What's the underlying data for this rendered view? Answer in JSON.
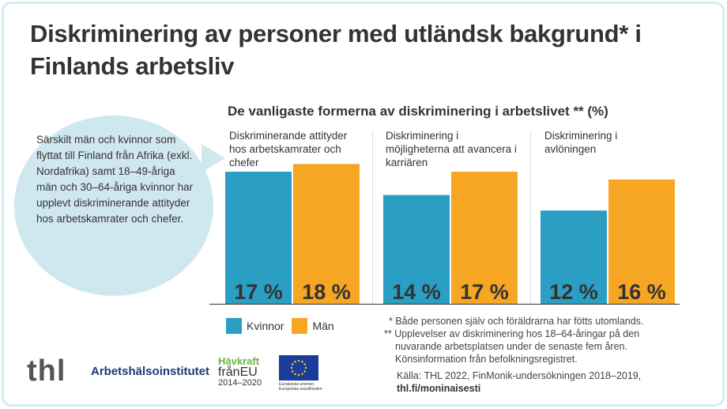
{
  "title": "Diskriminering av personer med utländsk bakgrund* i Finlands arbetsliv",
  "callout": "Särskilt män och kvinnor som flyttat till Finland från Afrika (exkl. Nordafrika) samt 18–49-åriga män och 30–64-åriga kvinnor har upplevt diskriminerande attityder hos arbetskamrater och chefer.",
  "chart_data": {
    "type": "bar",
    "title": "De vanligaste formerna av diskriminering i arbetslivet ** (%)",
    "categories": [
      "Diskriminerande attityder hos arbetskamrater och chefer",
      "Diskriminering i möjligheterna att avancera i karriären",
      "Diskriminering i avlöningen"
    ],
    "series": [
      {
        "name": "Kvinnor",
        "color": "#2a9fc3",
        "values": [
          17,
          14,
          12
        ]
      },
      {
        "name": "Män",
        "color": "#f6a623",
        "values": [
          18,
          17,
          16
        ]
      }
    ],
    "data_labels": [
      [
        "17 %",
        "18 %"
      ],
      [
        "14 %",
        "17 %"
      ],
      [
        "12 %",
        "16 %"
      ]
    ],
    "ylim": [
      0,
      18
    ],
    "legend": "bottom-left",
    "grid": false
  },
  "notes": [
    "* Både personen själv och föräldrarna har fötts utomlands.",
    "** Upplevelser av diskriminering hos 18–64-åringar på den",
    "nuvarande arbetsplatsen under de senaste fem åren.",
    "Könsinformation från befolkningsregistret."
  ],
  "source": "Källa: THL 2022, FinMonik-undersökningen 2018–2019,",
  "source_link": "thl.fi/moninaisesti",
  "logos": {
    "thl": "thl",
    "ahi": "Arbetshälsoinstitutet",
    "havkraft": [
      "Hävkraft",
      "frånEU",
      "2014–2020"
    ],
    "eu": [
      "Europeiska unionen",
      "Europeiska socialfonden"
    ]
  }
}
